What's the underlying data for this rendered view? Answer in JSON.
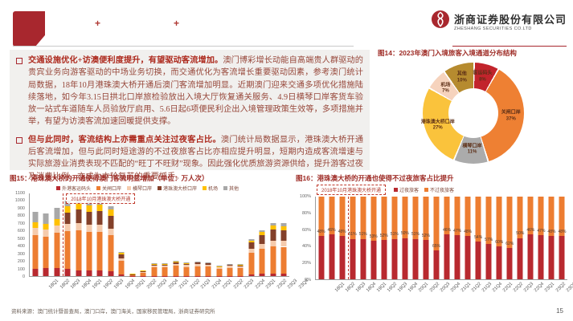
{
  "header": {
    "company_cn": "浙商证券股份有限公司",
    "company_en": "ZHESHANG SECURITIES CO.LTD",
    "plus_mark": "+"
  },
  "bullets": [
    {
      "lead": "交通设施优化+访澳便利度提升，有望驱动客流增加。",
      "body": "澳门博彩增长动能自高端贵人群驱动的贵宾业务向游客驱动的中场业务切换，而交通优化为客流增长重要驱动因素，参考澳门统计局数据，18年10月港珠澳大桥开通后澳门客流增加明显。近期澳门迎来交通多项优化措施陆续落地，如今年3.15日拱北口岸旅检验放出入境大厅恢复通关服务、4.9日横琴口岸客货车验放一站式车道随车人员验放厅启用、5.6日起6项便民利企出入境管理政策生效等，多项措施并举，有望为访澳客流加速回暖提供支撑。"
    },
    {
      "lead": "但与此同时，客流结构上亦需重点关注过夜客占比。",
      "body": "澳门统计局数据显示，港珠澳大桥开通后客流增加，但与此同时短途游的不过夜旅客占比亦相应提升明显，短期内造成客流增速与实际旅游业消费表现不匹配的“旺丁不旺财”现象。因此强化优质旅游资源供给，提升游客过夜及消费比例，亦成为本轮复苏的重要抓手。"
    }
  ],
  "footer": {
    "source": "资料来源：澳门统计暨普查局，澳门口岸，澳门海关，国家移民管理局，浙商证券研究所",
    "page": "15"
  },
  "chart_data": [
    {
      "id": "fig14",
      "type": "pie",
      "donut": true,
      "title": "图14：2023年澳门入境旅客入境通道分布结构",
      "labels": [
        "客运码头",
        "关闸口岸",
        "横琴口岸",
        "港珠澳大桥口岸",
        "机场",
        "其他"
      ],
      "values": [
        8,
        37,
        11,
        27,
        7,
        10
      ],
      "unit": "%",
      "colors": [
        "#c2242c",
        "#ee8033",
        "#ababab",
        "#fac33c",
        "#f6d3bd",
        "#b68b2f"
      ]
    },
    {
      "id": "fig15",
      "type": "bar",
      "stacked": true,
      "title": "图15：港珠澳大桥的开通使得澳门客流明显增加（单位：万人次）",
      "categories": [
        "18Q1",
        "18Q2",
        "18Q3",
        "18Q4",
        "19Q1",
        "19Q2",
        "19Q3",
        "19Q4",
        "20Q1",
        "20Q2",
        "20Q3",
        "20Q4",
        "21Q1",
        "21Q2",
        "21Q3",
        "21Q4",
        "22Q1",
        "22Q2",
        "22Q3",
        "22Q4",
        "23Q1",
        "23Q2",
        "23Q3",
        "23Q4"
      ],
      "series": [
        {
          "name": "外港客运码头",
          "color": "#b8292f",
          "values": [
            100,
            105,
            110,
            95,
            75,
            70,
            75,
            65,
            20,
            2,
            3,
            5,
            5,
            5,
            5,
            5,
            4,
            3,
            4,
            4,
            25,
            30,
            35,
            35
          ]
        },
        {
          "name": "关闸口岸",
          "color": "#ed7d31",
          "values": [
            445,
            420,
            465,
            500,
            530,
            520,
            515,
            480,
            180,
            15,
            45,
            110,
            110,
            130,
            115,
            125,
            120,
            90,
            105,
            100,
            280,
            330,
            360,
            355
          ]
        },
        {
          "name": "横琴口岸",
          "color": "#f5cbad",
          "values": [
            95,
            90,
            100,
            95,
            95,
            90,
            95,
            90,
            40,
            5,
            10,
            25,
            25,
            30,
            25,
            28,
            28,
            20,
            25,
            24,
            60,
            70,
            80,
            80
          ]
        },
        {
          "name": "港珠澳大桥口岸",
          "color": "#83402a",
          "values": [
            0,
            0,
            0,
            150,
            185,
            175,
            180,
            170,
            45,
            5,
            8,
            15,
            15,
            20,
            18,
            20,
            18,
            12,
            15,
            15,
            80,
            110,
            140,
            140
          ]
        },
        {
          "name": "机场",
          "color": "#ffc000",
          "values": [
            80,
            80,
            85,
            85,
            85,
            85,
            85,
            80,
            25,
            3,
            4,
            10,
            10,
            12,
            10,
            12,
            10,
            8,
            9,
            9,
            30,
            45,
            55,
            55
          ]
        },
        {
          "name": "其他",
          "color": "#a8a8a8",
          "values": [
            140,
            135,
            150,
            75,
            60,
            60,
            50,
            45,
            10,
            0,
            0,
            5,
            5,
            5,
            5,
            5,
            5,
            3,
            4,
            4,
            15,
            25,
            30,
            35
          ]
        }
      ],
      "ylim": [
        0,
        1100
      ],
      "ytick_step": 100,
      "grid": false,
      "legend_position": "top",
      "annotation": "2018年10月港珠澳大桥开通",
      "annotation_line_after_index": 2
    },
    {
      "id": "fig16",
      "type": "bar",
      "stacked": true,
      "percent": true,
      "title": "图16：港珠澳大桥的开通也使得不过夜旅客占比提升",
      "categories": [
        "18Q1",
        "18Q2",
        "18Q3",
        "18Q4",
        "19Q1",
        "19Q2",
        "19Q3",
        "19Q4",
        "20Q1",
        "20Q2",
        "20Q3",
        "20Q4",
        "21Q1",
        "21Q2",
        "21Q3",
        "21Q4",
        "22Q1",
        "22Q2",
        "22Q3",
        "22Q4",
        "23Q1",
        "23Q2",
        "23Q3",
        "23Q4"
      ],
      "series": [
        {
          "name": "过夜旅客",
          "color": "#b8292f",
          "values": [
            52,
            54,
            52,
            49,
            49,
            47,
            48,
            49,
            50,
            49,
            48,
            35,
            54,
            53,
            52,
            46,
            43,
            40,
            38,
            50,
            54,
            53,
            52,
            52
          ]
        },
        {
          "name": "不过夜旅客",
          "color": "#ed7d31",
          "values": [
            48,
            46,
            48,
            51,
            51,
            53,
            52,
            51,
            50,
            51,
            52,
            65,
            46,
            47,
            48,
            54,
            57,
            60,
            62,
            50,
            46,
            47,
            48,
            48
          ]
        }
      ],
      "data_labels_series": "不过夜旅客",
      "ylim": [
        0,
        100
      ],
      "ytick_step": 20,
      "ytick_suffix": "%",
      "grid": false,
      "legend_position": "top",
      "annotation": "2018年10月港珠澳大桥开通",
      "annotation_line_after_index": 2
    }
  ]
}
